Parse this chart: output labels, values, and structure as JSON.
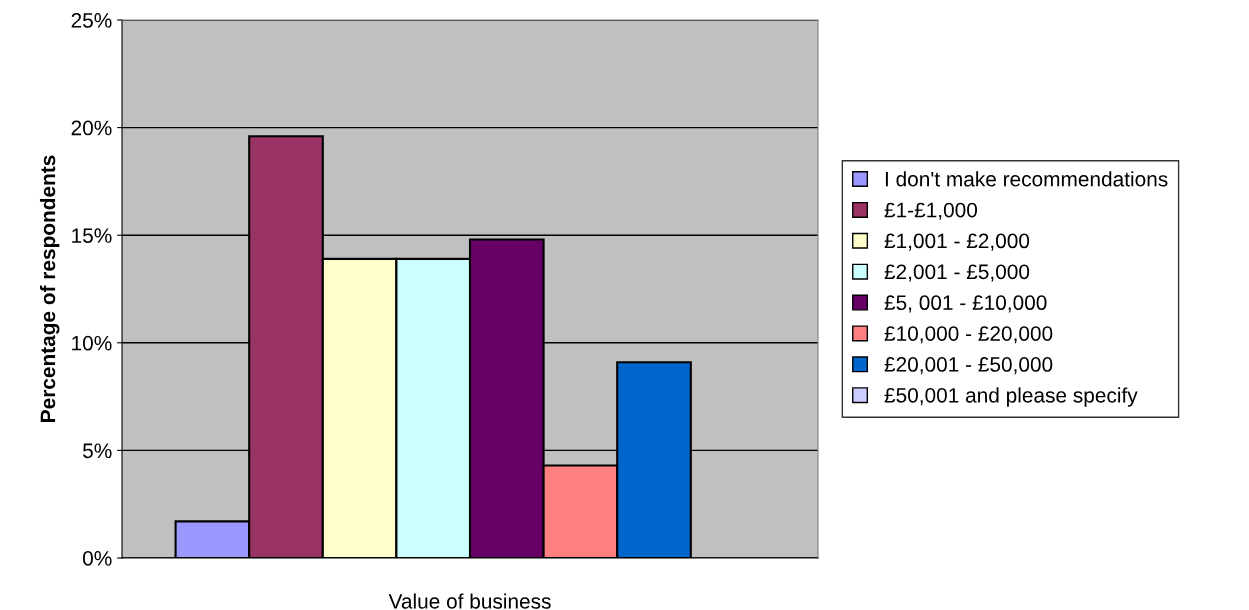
{
  "chart_data": {
    "type": "bar",
    "xlabel": "Value of business",
    "ylabel": "Percentage of respondents",
    "categories": [
      null
    ],
    "series": [
      {
        "name": "I don't make recommendations",
        "color": "#9999ff",
        "values": [
          1.7
        ]
      },
      {
        "name": "£1-£1,000",
        "color": "#993366",
        "values": [
          19.6
        ]
      },
      {
        "name": "£1,001 - £2,000",
        "color": "#ffffcc",
        "values": [
          13.9
        ]
      },
      {
        "name": "£2,001 - £5,000",
        "color": "#ccffff",
        "values": [
          13.9
        ]
      },
      {
        "name": "£5, 001 - £10,000",
        "color": "#660066",
        "values": [
          14.8
        ]
      },
      {
        "name": "£10,000 - £20,000",
        "color": "#ff8080",
        "values": [
          4.3
        ]
      },
      {
        "name": "£20,001 - £50,000",
        "color": "#0066cc",
        "values": [
          9.1
        ]
      },
      {
        "name": "£50,001 and please specify",
        "color": "#ccccff",
        "values": [
          0
        ]
      }
    ],
    "ylim": [
      0,
      25
    ],
    "yticks": [
      {
        "value": 0,
        "label": "0%"
      },
      {
        "value": 5,
        "label": "5%"
      },
      {
        "value": 10,
        "label": "10%"
      },
      {
        "value": 15,
        "label": "15%"
      },
      {
        "value": 20,
        "label": "20%"
      },
      {
        "value": 25,
        "label": "25%"
      }
    ],
    "grid": "y",
    "legend": "right"
  }
}
